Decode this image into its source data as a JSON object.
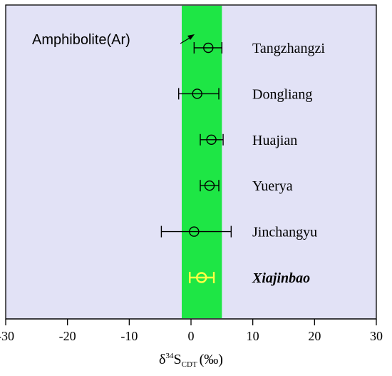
{
  "chart_data": {
    "type": "scatter",
    "xlim": [
      -30,
      30
    ],
    "xticks": [
      -30,
      -20,
      -10,
      0,
      10,
      20,
      30
    ],
    "xlabel": {
      "prefix": "δ",
      "sup": "34",
      "main": "S",
      "sub": "CDT",
      "unit": "(‰)"
    },
    "background_color": "#e2e2f6",
    "band": {
      "from": -1.5,
      "to": 5,
      "color": "#1ee645"
    },
    "annotation": {
      "text": "Amphibolite(Ar)",
      "target_x": -0.3
    },
    "series": [
      {
        "label": "Tangzhangzi",
        "x": 2.8,
        "min": 0.5,
        "max": 5.0,
        "color": "#000000",
        "highlight": false
      },
      {
        "label": "Dongliang",
        "x": 1.0,
        "min": -2.0,
        "max": 4.5,
        "color": "#000000",
        "highlight": false
      },
      {
        "label": "Huajian",
        "x": 3.3,
        "min": 1.5,
        "max": 5.2,
        "color": "#000000",
        "highlight": false
      },
      {
        "label": "Yuerya",
        "x": 3.0,
        "min": 1.5,
        "max": 4.5,
        "color": "#000000",
        "highlight": false
      },
      {
        "label": "Jinchangyu",
        "x": 0.5,
        "min": -4.8,
        "max": 6.5,
        "color": "#000000",
        "highlight": false
      },
      {
        "label": "Xiajinbao",
        "x": 1.7,
        "min": -0.2,
        "max": 3.7,
        "color": "#ffff44",
        "highlight": true
      }
    ],
    "grid": false
  }
}
